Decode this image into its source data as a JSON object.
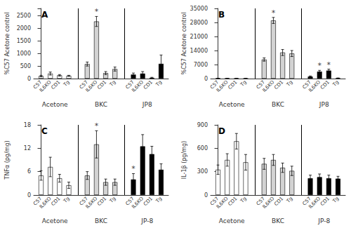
{
  "chart_data": [
    {
      "type": "bar",
      "title": "A",
      "ylabel": "%C57 Acetone control",
      "categories": [
        "C57",
        "IL6KO",
        "CD1",
        "Tg"
      ],
      "series": [
        {
          "name": "Acetone",
          "color": "white",
          "values": [
            100,
            200,
            130,
            110
          ],
          "errors": [
            30,
            60,
            30,
            20
          ]
        },
        {
          "name": "BKC",
          "color": "lightgray",
          "values": [
            580,
            2280,
            220,
            380
          ],
          "errors": [
            80,
            200,
            60,
            80
          ]
        },
        {
          "name": "JP8",
          "color": "black",
          "values": [
            160,
            200,
            30,
            590
          ],
          "errors": [
            60,
            80,
            20,
            350
          ]
        }
      ],
      "annotations": [
        {
          "text": "*",
          "series": "BKC",
          "category": "IL6KO"
        }
      ],
      "ylim": [
        0,
        2800
      ],
      "yticks": [
        0,
        500,
        1000,
        1500,
        2000,
        2500
      ],
      "grid": false
    },
    {
      "type": "bar",
      "title": "B",
      "ylabel": "%C57 Acetone control",
      "categories": [
        "C57",
        "IL6KO",
        "CD1",
        "Tg"
      ],
      "series": [
        {
          "name": "Acetone",
          "color": "white",
          "values": [
            100,
            50,
            50,
            50
          ],
          "errors": [
            20,
            20,
            20,
            20
          ]
        },
        {
          "name": "BKC",
          "color": "lightgray",
          "values": [
            9500,
            29000,
            13000,
            12500
          ],
          "errors": [
            800,
            1500,
            1500,
            1500
          ]
        },
        {
          "name": "JP8",
          "color": "black",
          "values": [
            1000,
            3500,
            4000,
            200
          ],
          "errors": [
            300,
            600,
            700,
            100
          ]
        }
      ],
      "annotations": [
        {
          "text": "*",
          "series": "BKC",
          "category": "IL6KO"
        },
        {
          "text": "*",
          "series": "JP8",
          "category": "IL6KO"
        },
        {
          "text": "*",
          "series": "JP8",
          "category": "CD1"
        }
      ],
      "ylim": [
        0,
        35000
      ],
      "yticks": [
        0,
        7000,
        14000,
        21000,
        28000,
        35000
      ],
      "grid": false
    },
    {
      "type": "bar",
      "title": "C",
      "ylabel": "TNFα (pg/mg)",
      "categories": [
        "C57",
        "IL6KO",
        "CD1",
        "Tg"
      ],
      "series": [
        {
          "name": "Acetone",
          "color": "white",
          "values": [
            5.0,
            7.2,
            4.3,
            2.5
          ],
          "errors": [
            1.2,
            2.5,
            1.0,
            0.8
          ]
        },
        {
          "name": "BKC",
          "color": "lightgray",
          "values": [
            5.0,
            13.0,
            3.3,
            3.3
          ],
          "errors": [
            1.0,
            3.5,
            0.8,
            0.8
          ]
        },
        {
          "name": "JP-8",
          "color": "black",
          "values": [
            4.0,
            12.5,
            10.5,
            6.5
          ],
          "errors": [
            1.5,
            3.0,
            2.0,
            1.5
          ]
        }
      ],
      "annotations": [
        {
          "text": "*",
          "series": "BKC",
          "category": "IL6KO"
        },
        {
          "text": "*",
          "series": "JP-8",
          "category": "C57"
        }
      ],
      "ylim": [
        0,
        18
      ],
      "yticks": [
        0,
        6,
        12,
        18
      ],
      "grid": false
    },
    {
      "type": "bar",
      "title": "D",
      "ylabel": "IL-1β (pg/mg)",
      "categories": [
        "C57",
        "IL6KO",
        "CD1",
        "Tg"
      ],
      "series": [
        {
          "name": "Acetone",
          "color": "white",
          "values": [
            325,
            450,
            690,
            420
          ],
          "errors": [
            60,
            80,
            100,
            100
          ]
        },
        {
          "name": "BKC",
          "color": "lightgray",
          "values": [
            400,
            450,
            350,
            310
          ],
          "errors": [
            70,
            70,
            60,
            60
          ]
        },
        {
          "name": "JP-8",
          "color": "black",
          "values": [
            215,
            230,
            215,
            210
          ],
          "errors": [
            40,
            40,
            40,
            30
          ]
        }
      ],
      "ylim": [
        0,
        900
      ],
      "yticks": [
        0,
        300,
        600,
        900
      ],
      "grid": false
    }
  ]
}
